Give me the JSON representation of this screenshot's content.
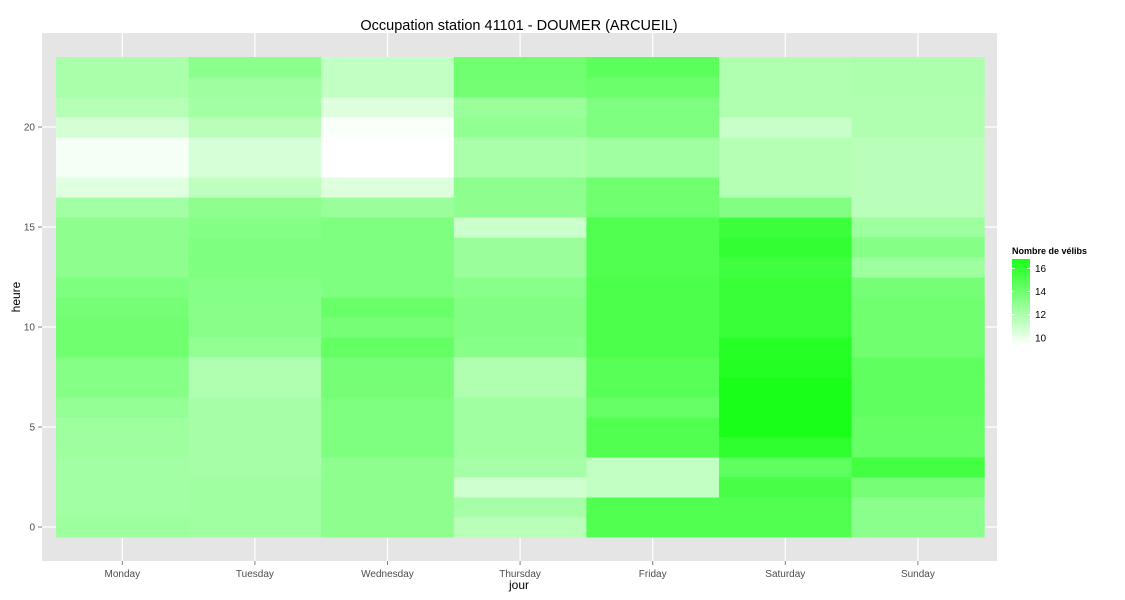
{
  "chart_data": {
    "type": "heatmap",
    "title": "Occupation station 41101 - DOUMER (ARCUEIL)",
    "xlabel": "jour",
    "ylabel": "heure",
    "x_categories": [
      "Monday",
      "Tuesday",
      "Wednesday",
      "Thursday",
      "Friday",
      "Saturday",
      "Sunday"
    ],
    "y_hours": [
      0,
      1,
      2,
      3,
      4,
      5,
      6,
      7,
      8,
      9,
      10,
      11,
      12,
      13,
      14,
      15,
      16,
      17,
      18,
      19,
      20,
      21,
      22,
      23
    ],
    "y_ticks": [
      0,
      5,
      10,
      15,
      20
    ],
    "ylim": [
      -0.5,
      23.5
    ],
    "legend": {
      "title": "Nombre de vélibs",
      "ticks": [
        10,
        12,
        14,
        16
      ],
      "range": [
        9.3,
        16.8
      ],
      "color_low": "#ffffff",
      "color_high": "#1aff1a"
    },
    "values": {
      "Monday": [
        12.5,
        12.3,
        12.3,
        12.3,
        12.5,
        12.5,
        12.8,
        13.3,
        13.3,
        14.0,
        14.0,
        13.8,
        13.5,
        13.0,
        13.0,
        13.0,
        12.3,
        10.3,
        9.6,
        9.6,
        10.7,
        11.7,
        12.1,
        12.1
      ],
      "Tuesday": [
        12.4,
        12.4,
        12.4,
        12.2,
        12.2,
        12.2,
        12.2,
        11.9,
        11.9,
        12.9,
        13.2,
        13.2,
        13.3,
        13.5,
        13.5,
        13.3,
        13.0,
        11.4,
        10.6,
        10.6,
        11.6,
        12.3,
        12.5,
        13.1
      ],
      "Wednesday": [
        13.0,
        13.0,
        13.0,
        13.0,
        13.5,
        13.5,
        13.5,
        13.8,
        13.8,
        14.4,
        13.8,
        14.2,
        13.5,
        13.5,
        13.5,
        13.5,
        12.6,
        10.4,
        9.3,
        9.3,
        9.5,
        10.4,
        11.3,
        11.3
      ],
      "Thursday": [
        11.6,
        12.2,
        10.9,
        12.2,
        12.4,
        12.4,
        12.4,
        11.9,
        11.9,
        13.2,
        13.4,
        13.4,
        13.2,
        12.6,
        12.6,
        11.0,
        13.0,
        13.0,
        12.1,
        12.1,
        12.9,
        12.6,
        13.9,
        14.0
      ],
      "Friday": [
        15.0,
        15.0,
        11.3,
        11.3,
        15.0,
        15.0,
        14.3,
        14.8,
        14.8,
        15.2,
        15.2,
        15.2,
        15.2,
        15.0,
        15.0,
        15.0,
        14.0,
        14.0,
        12.4,
        12.4,
        13.5,
        13.5,
        14.1,
        14.6
      ],
      "Saturday": [
        15.0,
        15.0,
        15.3,
        14.5,
        16.1,
        16.8,
        16.8,
        16.8,
        16.5,
        16.4,
        15.8,
        15.8,
        15.8,
        15.6,
        16.0,
        15.7,
        13.4,
        11.8,
        11.8,
        11.8,
        11.1,
        11.9,
        11.9,
        11.9
      ],
      "Sunday": [
        13.1,
        13.1,
        13.8,
        15.5,
        14.3,
        14.3,
        14.5,
        14.5,
        14.5,
        14.0,
        14.0,
        14.0,
        13.8,
        12.5,
        13.3,
        12.5,
        11.6,
        11.6,
        11.6,
        11.6,
        11.9,
        11.9,
        12.0,
        12.0
      ]
    }
  }
}
